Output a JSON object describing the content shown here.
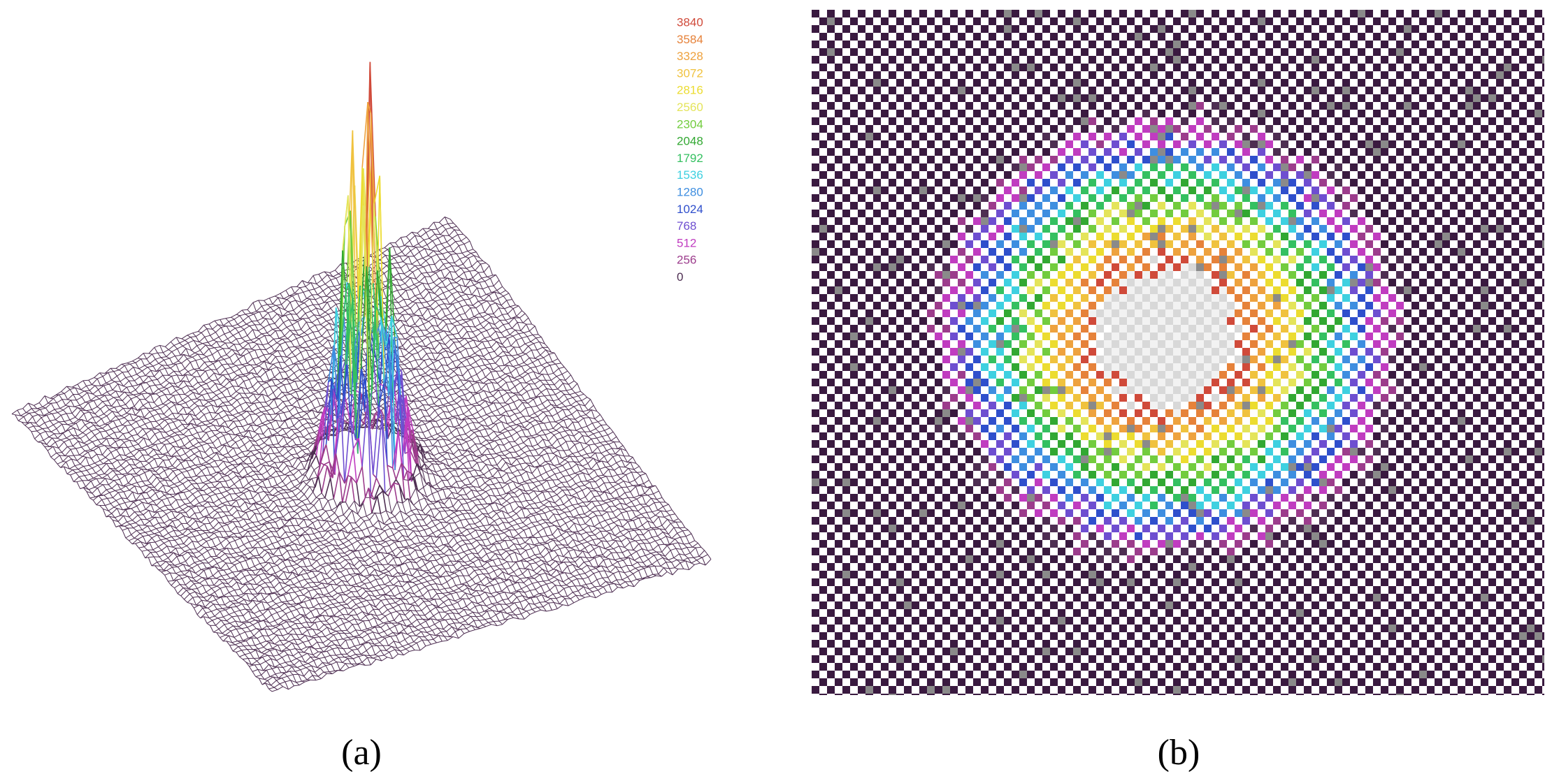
{
  "panels": [
    {
      "caption": "(a)",
      "legend": [
        {
          "label": "3840",
          "color": "#d04a3a"
        },
        {
          "label": "3584",
          "color": "#e6823a"
        },
        {
          "label": "3328",
          "color": "#eea23e"
        },
        {
          "label": "3072",
          "color": "#f0c23e"
        },
        {
          "label": "2816",
          "color": "#ecdc30"
        },
        {
          "label": "2560",
          "color": "#e4e45a"
        },
        {
          "label": "2304",
          "color": "#72cc3e"
        },
        {
          "label": "2048",
          "color": "#32a832"
        },
        {
          "label": "1792",
          "color": "#34c060"
        },
        {
          "label": "1536",
          "color": "#3ed0e0"
        },
        {
          "label": "1280",
          "color": "#3e8ee0"
        },
        {
          "label": "1024",
          "color": "#2f4fcc"
        },
        {
          "label": "768",
          "color": "#6e4ed0"
        },
        {
          "label": "512",
          "color": "#c03cc0"
        },
        {
          "label": "256",
          "color": "#9c3c8c"
        },
        {
          "label": "0",
          "color": "#4e2e52"
        }
      ]
    },
    {
      "caption": "(b)"
    }
  ]
}
